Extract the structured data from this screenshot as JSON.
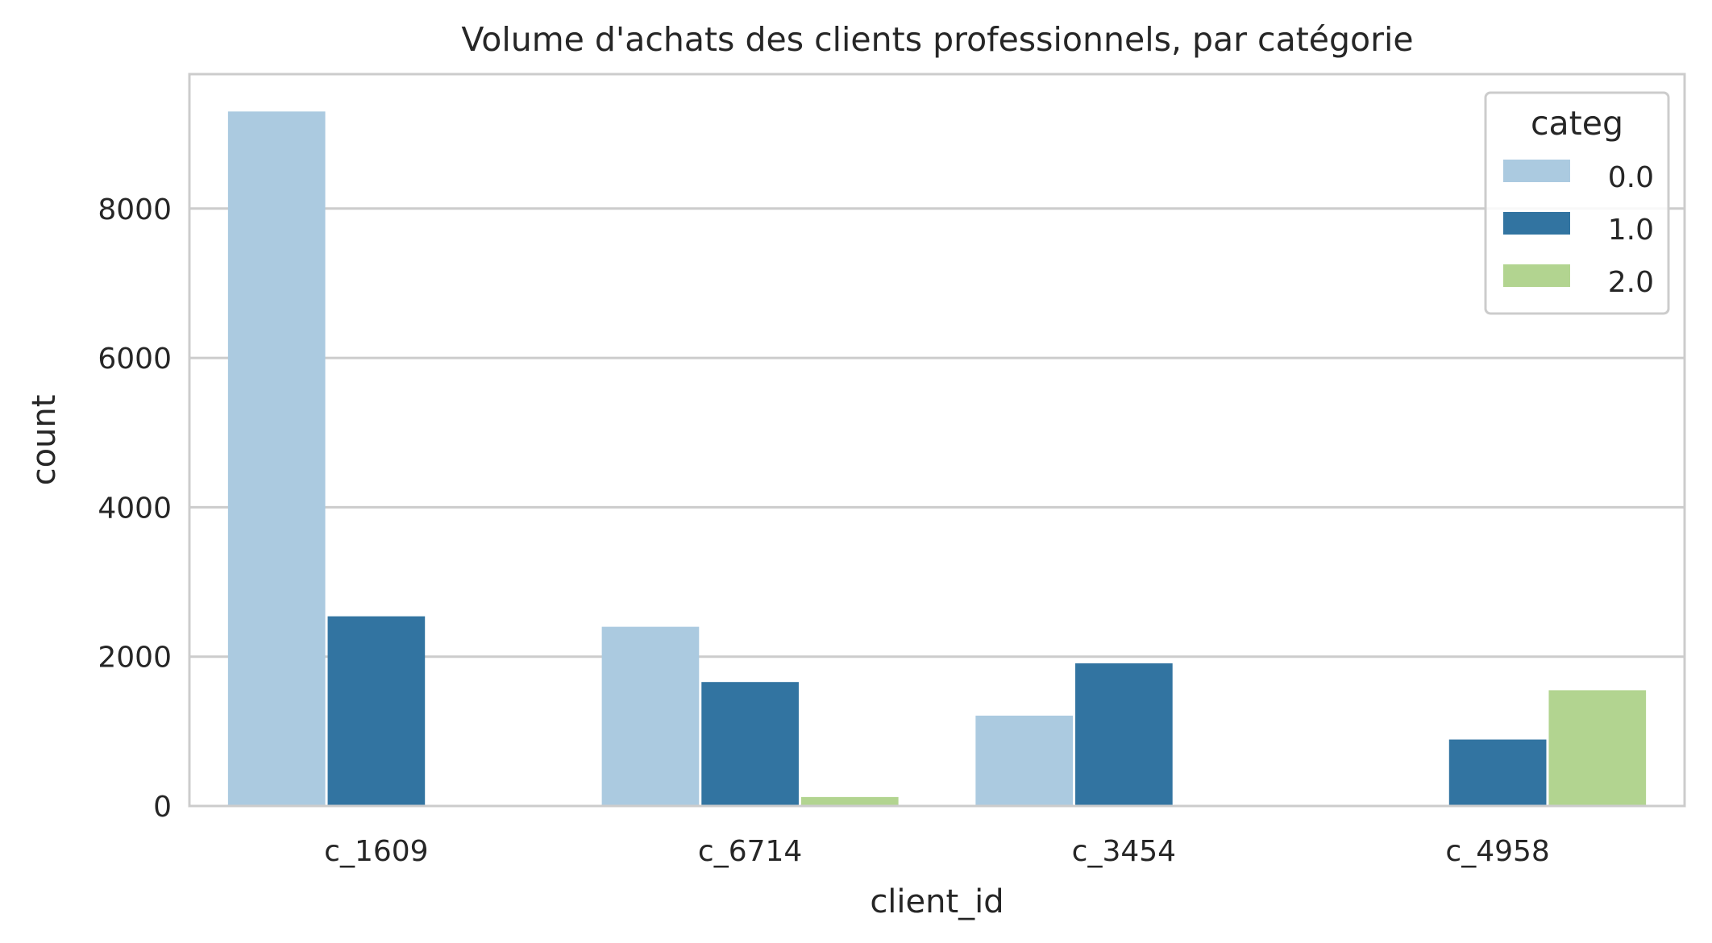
{
  "chart_data": {
    "type": "bar",
    "title": "Volume d'achats des clients professionnels, par catégorie",
    "xlabel": "client_id",
    "ylabel": "count",
    "categories": [
      "c_1609",
      "c_6714",
      "c_3454",
      "c_4958"
    ],
    "yticks": [
      0,
      2000,
      4000,
      6000,
      8000
    ],
    "ylim": [
      0,
      9800
    ],
    "grid": "horizontal",
    "legend": {
      "title": "categ",
      "placement": "top-right"
    },
    "series": [
      {
        "name": "0.0",
        "color": "#abcae0",
        "values": [
          9300,
          2400,
          1210,
          0
        ]
      },
      {
        "name": "1.0",
        "color": "#3274a1",
        "values": [
          2540,
          1660,
          1910,
          890
        ]
      },
      {
        "name": "2.0",
        "color": "#b2d490",
        "values": [
          0,
          120,
          0,
          1550
        ]
      }
    ]
  }
}
